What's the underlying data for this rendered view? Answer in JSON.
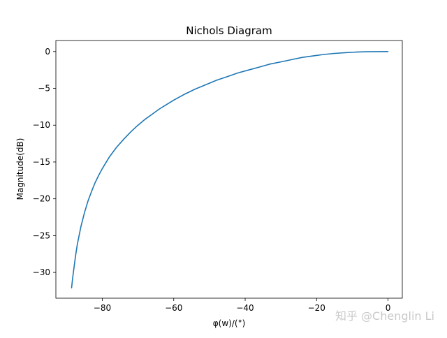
{
  "chart_data": {
    "type": "line",
    "title": "Nichols Diagram",
    "xlabel": "φ(w)/(°)",
    "ylabel": "Magnitude(dB)",
    "xlim": [
      -93.0,
      4.0
    ],
    "ylim": [
      -33.5,
      1.5
    ],
    "xticks": [
      -80,
      -60,
      -40,
      -20,
      0
    ],
    "yticks": [
      -30,
      -25,
      -20,
      -15,
      -10,
      -5,
      0
    ],
    "xtick_labels": [
      "−80",
      "−60",
      "−40",
      "−20",
      "0"
    ],
    "ytick_labels": [
      "−30",
      "−25",
      "−20",
      "−15",
      "−10",
      "−5",
      "0"
    ],
    "grid": false,
    "series": [
      {
        "color": "#1f77b4",
        "x": [
          -88.6,
          -88.4,
          -88.2,
          -88.0,
          -87.5,
          -87.0,
          -86.0,
          -85.0,
          -84.0,
          -83.0,
          -82.0,
          -81.0,
          -80.0,
          -78.0,
          -76.0,
          -74.0,
          -72.0,
          -70.0,
          -68.0,
          -66.0,
          -64.0,
          -62.0,
          -60.0,
          -57.0,
          -54.0,
          -51.0,
          -48.0,
          -45.0,
          -42.0,
          -39.0,
          -36.0,
          -33.0,
          -30.0,
          -27.0,
          -24.0,
          -21.0,
          -18.0,
          -15.0,
          -12.0,
          -9.0,
          -6.0,
          -3.0,
          0.0
        ],
        "y": [
          -32.1,
          -31.2,
          -30.4,
          -29.6,
          -27.8,
          -26.2,
          -23.8,
          -21.9,
          -20.3,
          -19.0,
          -17.8,
          -16.8,
          -15.9,
          -14.3,
          -13.0,
          -11.9,
          -10.9,
          -10.0,
          -9.2,
          -8.5,
          -7.8,
          -7.2,
          -6.6,
          -5.8,
          -5.1,
          -4.5,
          -3.9,
          -3.4,
          -2.9,
          -2.5,
          -2.1,
          -1.7,
          -1.4,
          -1.1,
          -0.8,
          -0.6,
          -0.4,
          -0.25,
          -0.15,
          -0.07,
          -0.03,
          -0.01,
          0.0
        ]
      }
    ]
  },
  "watermark": "知乎 @Chenglin Li"
}
